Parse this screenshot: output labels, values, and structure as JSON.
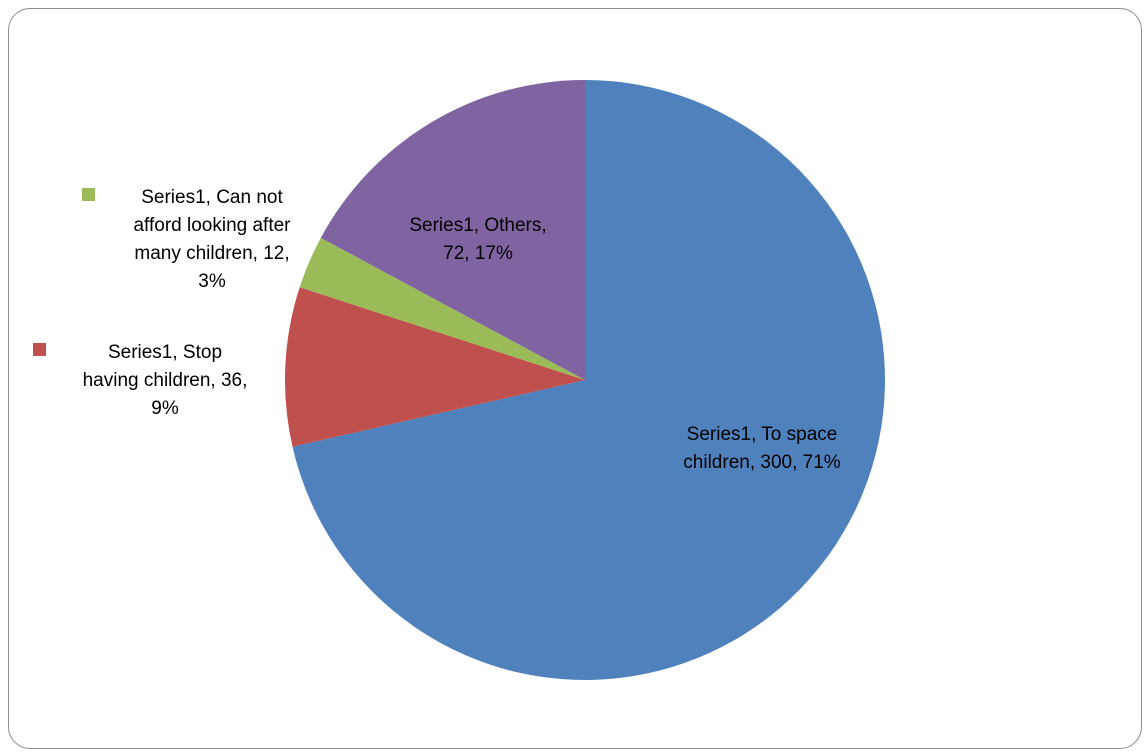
{
  "chart_data": {
    "type": "pie",
    "title": "",
    "series_name": "Series1",
    "slices": [
      {
        "category": "To space children",
        "value": 300,
        "percent": "71%",
        "color": "#4f81bd",
        "label_lines": [
          "Series1, To space",
          "children, 300, 71%"
        ]
      },
      {
        "category": "Stop having children",
        "value": 36,
        "percent": "9%",
        "color": "#c0504d",
        "label_lines": [
          "Series1, Stop",
          "having children, 36,",
          "9%"
        ]
      },
      {
        "category": "Can not afford looking after many children",
        "value": 12,
        "percent": "3%",
        "color": "#9bbb59",
        "label_lines": [
          "Series1, Can not",
          "afford looking after",
          "many children, 12,",
          "3%"
        ]
      },
      {
        "category": "Others",
        "value": 72,
        "percent": "17%",
        "color": "#8064a2",
        "label_lines": [
          "Series1, Others,",
          "72, 17%"
        ]
      }
    ],
    "legend_markers": [
      "Can not afford looking after many children",
      "Stop having children"
    ],
    "partial_title_visible": ""
  }
}
